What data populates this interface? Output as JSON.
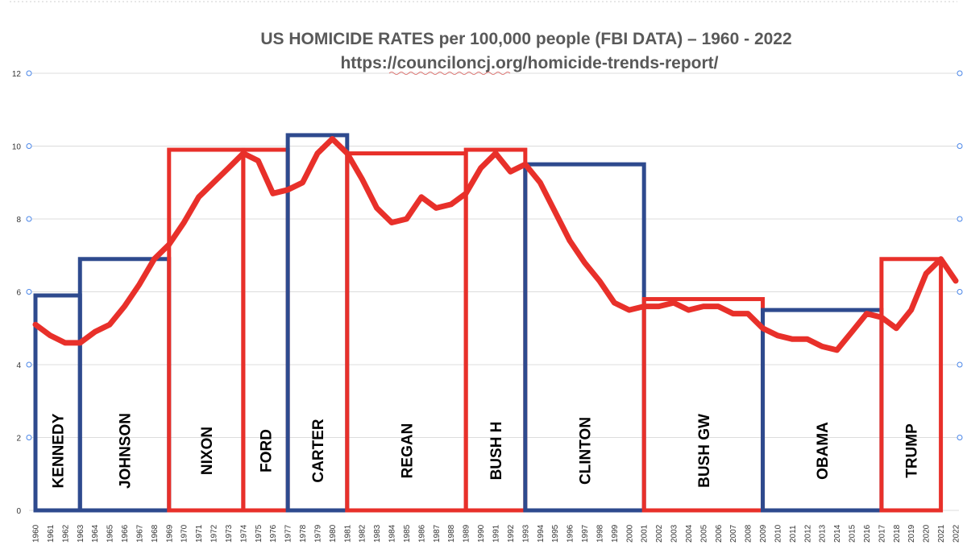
{
  "chart_data": {
    "type": "line",
    "title": "US HOMICIDE RATES per 100,000 people (FBI DATA) – 1960 - 2022",
    "subtitle": "https://counciloncj.org/homicide-trends-report/",
    "xlabel": "",
    "ylabel": "",
    "ylim": [
      0,
      12
    ],
    "yticks": [
      "0",
      "2",
      "4",
      "6",
      "8",
      "10",
      "12"
    ],
    "grid": true,
    "line_color": "#e8302a",
    "x": [
      1960,
      1961,
      1962,
      1963,
      1964,
      1965,
      1966,
      1967,
      1968,
      1969,
      1970,
      1971,
      1972,
      1973,
      1974,
      1975,
      1976,
      1977,
      1978,
      1979,
      1980,
      1981,
      1982,
      1983,
      1984,
      1985,
      1986,
      1987,
      1988,
      1989,
      1990,
      1991,
      1992,
      1993,
      1994,
      1995,
      1996,
      1997,
      1998,
      1999,
      2000,
      2001,
      2002,
      2003,
      2004,
      2005,
      2006,
      2007,
      2008,
      2009,
      2010,
      2011,
      2012,
      2013,
      2014,
      2015,
      2016,
      2017,
      2018,
      2019,
      2020,
      2021,
      2022
    ],
    "x_labels": [
      "1960",
      "1961",
      "1962",
      "1963",
      "1964",
      "1965",
      "1966",
      "1967",
      "1968",
      "1969",
      "1970",
      "1971",
      "1972",
      "1973",
      "1974",
      "1975",
      "1976",
      "1977",
      "1978",
      "1979",
      "1980",
      "1981",
      "1982",
      "1983",
      "1984",
      "1985",
      "1986",
      "1987",
      "1988",
      "1989",
      "1990",
      "1991",
      "1992",
      "1993",
      "1994",
      "1995",
      "1996",
      "1997",
      "1998",
      "1999",
      "2000",
      "2001",
      "2002",
      "2003",
      "2004",
      "2005",
      "2006",
      "2007",
      "2008",
      "2009",
      "2010",
      "2011",
      "2012",
      "2013",
      "2014",
      "2015",
      "2016",
      "2017",
      "2018",
      "2019",
      "2020",
      "2021",
      "2022"
    ],
    "series": [
      {
        "name": "Homicide rate per 100,000",
        "values": [
          5.1,
          4.8,
          4.6,
          4.6,
          4.9,
          5.1,
          5.6,
          6.2,
          6.9,
          7.3,
          7.9,
          8.6,
          9.0,
          9.4,
          9.8,
          9.6,
          8.7,
          8.8,
          9.0,
          9.8,
          10.2,
          9.8,
          9.1,
          8.3,
          7.9,
          8.0,
          8.6,
          8.3,
          8.4,
          8.7,
          9.4,
          9.8,
          9.3,
          9.5,
          9.0,
          8.2,
          7.4,
          6.8,
          6.3,
          5.7,
          5.5,
          5.6,
          5.6,
          5.7,
          5.5,
          5.6,
          5.6,
          5.4,
          5.4,
          5.0,
          4.8,
          4.7,
          4.7,
          4.5,
          4.4,
          4.9,
          5.4,
          5.3,
          5.0,
          5.5,
          6.5,
          6.9,
          6.3
        ]
      }
    ],
    "presidencies": [
      {
        "name": "KENNEDY",
        "start": 1960,
        "end": 1963,
        "level": 5.9,
        "party_color": "#2e4a8e"
      },
      {
        "name": "JOHNSON",
        "start": 1963,
        "end": 1969,
        "level": 6.9,
        "party_color": "#2e4a8e"
      },
      {
        "name": "NIXON",
        "start": 1969,
        "end": 1974,
        "level": 9.9,
        "party_color": "#e8302a"
      },
      {
        "name": "FORD",
        "start": 1974,
        "end": 1977,
        "level": 9.9,
        "party_color": "#e8302a"
      },
      {
        "name": "CARTER",
        "start": 1977,
        "end": 1981,
        "level": 10.3,
        "party_color": "#2e4a8e"
      },
      {
        "name": "REGAN",
        "start": 1981,
        "end": 1989,
        "level": 9.8,
        "party_color": "#e8302a"
      },
      {
        "name": "BUSH H",
        "start": 1989,
        "end": 1993,
        "level": 9.9,
        "party_color": "#e8302a"
      },
      {
        "name": "CLINTON",
        "start": 1993,
        "end": 2001,
        "level": 9.5,
        "party_color": "#2e4a8e"
      },
      {
        "name": "BUSH GW",
        "start": 2001,
        "end": 2009,
        "level": 5.8,
        "party_color": "#e8302a"
      },
      {
        "name": "OBAMA",
        "start": 2009,
        "end": 2017,
        "level": 5.5,
        "party_color": "#2e4a8e"
      },
      {
        "name": "TRUMP",
        "start": 2017,
        "end": 2021,
        "level": 6.9,
        "party_color": "#e8302a"
      }
    ]
  }
}
